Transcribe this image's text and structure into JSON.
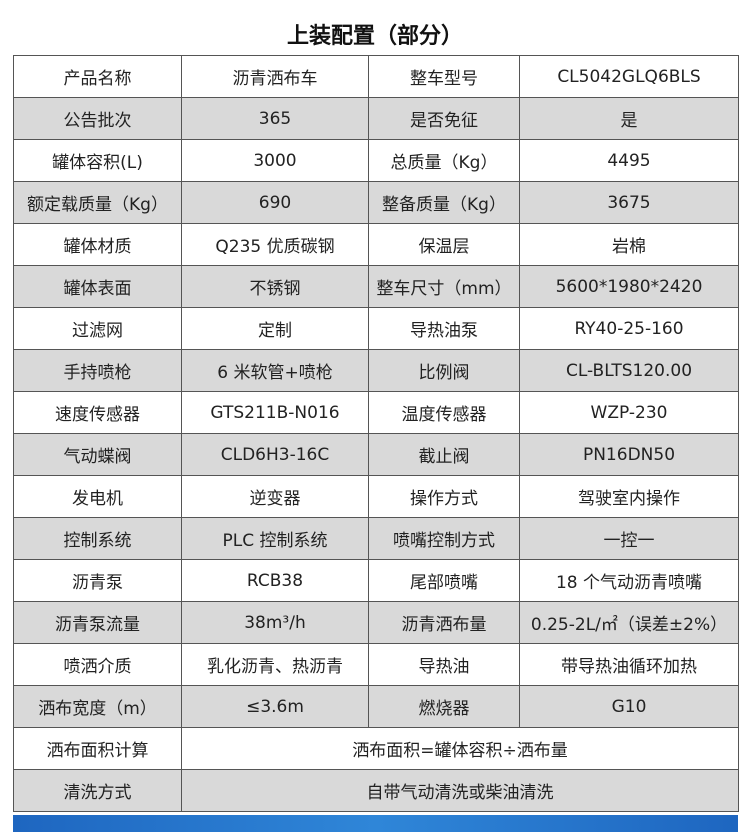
{
  "title": "上装配置（部分）",
  "rows": [
    [
      "产品名称",
      "沥青洒布车",
      "整车型号",
      "CL5042GLQ6BLS"
    ],
    [
      "公告批次",
      "365",
      "是否免征",
      "是"
    ],
    [
      "罐体容积(L)",
      "3000",
      "总质量（Kg）",
      "4495"
    ],
    [
      "额定载质量（Kg）",
      "690",
      "整备质量（Kg）",
      "3675"
    ],
    [
      "罐体材质",
      "Q235 优质碳钢",
      "保温层",
      "岩棉"
    ],
    [
      "罐体表面",
      "不锈钢",
      "整车尺寸（mm）",
      "5600*1980*2420"
    ],
    [
      "过滤网",
      "定制",
      "导热油泵",
      "RY40-25-160"
    ],
    [
      "手持喷枪",
      "6 米软管+喷枪",
      "比例阀",
      "CL-BLTS120.00"
    ],
    [
      "速度传感器",
      "GTS211B-N016",
      "温度传感器",
      "WZP-230"
    ],
    [
      "气动蝶阀",
      "CLD6H3-16C",
      "截止阀",
      "PN16DN50"
    ],
    [
      "发电机",
      "逆变器",
      "操作方式",
      "驾驶室内操作"
    ],
    [
      "控制系统",
      "PLC 控制系统",
      "喷嘴控制方式",
      "一控一"
    ],
    [
      "沥青泵",
      "RCB38",
      "尾部喷嘴",
      "18 个气动沥青喷嘴"
    ],
    [
      "沥青泵流量",
      "38m³/h",
      "沥青洒布量",
      "0.25-2L/㎡（误差±2%）"
    ],
    [
      "喷洒介质",
      "乳化沥青、热沥青",
      "导热油",
      "带导热油循环加热"
    ],
    [
      "洒布宽度（m）",
      "≤3.6m",
      "燃烧器",
      "G10"
    ]
  ],
  "merged_rows": [
    [
      "洒布面积计算",
      "洒布面积=罐体容积÷洒布量"
    ],
    [
      "清洗方式",
      "自带气动清洗或柴油清洗"
    ]
  ],
  "colors": {
    "stripe": "#d9d9d9",
    "border": "#555555",
    "band": "#1e66c0"
  }
}
